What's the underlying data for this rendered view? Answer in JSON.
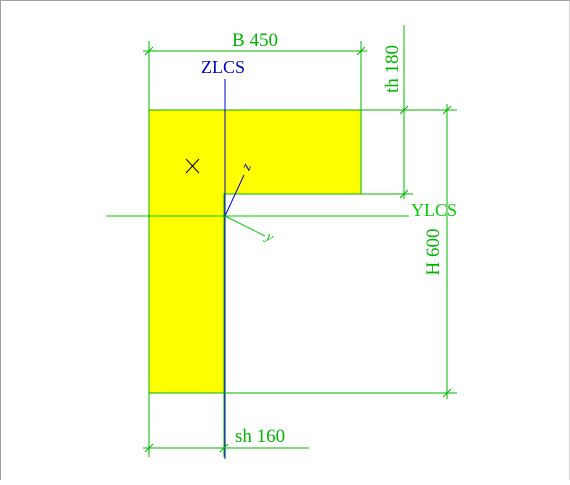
{
  "labels": {
    "width": "B 450",
    "flange_thickness": "th 180",
    "height": "H 600",
    "web_thickness": "sh 160",
    "z_axis": "ZLCS",
    "y_axis": "YLCS",
    "local_z": "z",
    "local_y": "y"
  },
  "section": {
    "type": "L-section",
    "B": 450,
    "H": 600,
    "th": 180,
    "sh": 160
  },
  "colors": {
    "fill": "#ffff00",
    "dimension": "#00b400",
    "axis_z": "#0000cc",
    "axis_y": "#00cc00",
    "local_axes": "#0000cc",
    "marker": "#000000"
  }
}
